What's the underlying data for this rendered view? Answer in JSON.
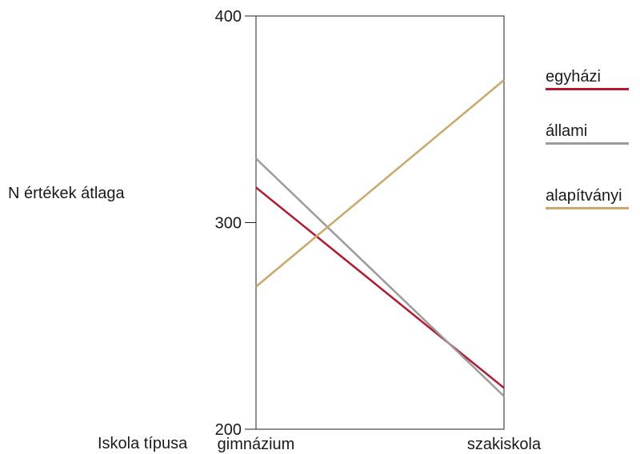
{
  "chart_data": {
    "type": "line",
    "title": "",
    "ylabel": "N értékek átlaga",
    "xlabel": "Iskola típusa",
    "categories": [
      "gimnázium",
      "szakiskola"
    ],
    "ylim": [
      200,
      400
    ],
    "yticks": [
      200,
      300,
      400
    ],
    "grid": false,
    "legend_position": "right",
    "series": [
      {
        "name": "egyházi",
        "color": "#b5172d",
        "values": [
          317,
          220
        ]
      },
      {
        "name": "állami",
        "color": "#9b9b9b",
        "values": [
          331,
          216
        ]
      },
      {
        "name": "alapítványi",
        "color": "#c9a96a",
        "values": [
          269,
          369
        ]
      }
    ]
  }
}
